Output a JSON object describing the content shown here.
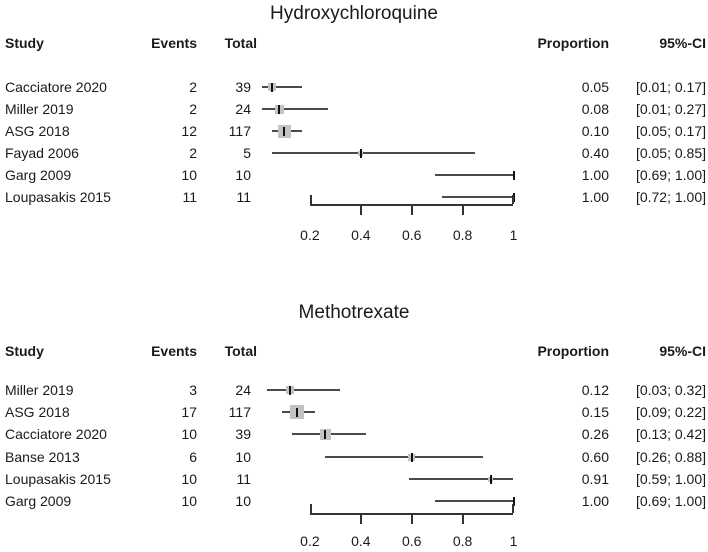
{
  "figure": {
    "background": "#ffffff",
    "colors": {
      "square_fill": "#c3c3c3",
      "ci_line": "#4a4a4a",
      "estimate_tick": "#111111",
      "axis": "#333333",
      "text": "#1a1a1a"
    }
  },
  "chart_data": [
    {
      "type": "forest",
      "title": "Hydroxychloroquine",
      "columns": {
        "study": "Study",
        "events": "Events",
        "total": "Total",
        "proportion": "Proportion",
        "ci": "95%-CI"
      },
      "xlim": [
        0,
        1
      ],
      "x_ticks": [
        0.2,
        0.4,
        0.6,
        0.8,
        1
      ],
      "x_tick_labels": [
        "0.2",
        "0.4",
        "0.6",
        "0.8",
        "1"
      ],
      "grid": false,
      "studies": [
        {
          "study": "Cacciatore 2020",
          "events": "2",
          "total": "39",
          "proportion": 0.05,
          "ci_low": 0.01,
          "ci_high": 0.17,
          "proportion_label": "0.05",
          "ci_label": "[0.01; 0.17]",
          "marker_size": 8
        },
        {
          "study": "Miller 2019",
          "events": "2",
          "total": "24",
          "proportion": 0.08,
          "ci_low": 0.01,
          "ci_high": 0.27,
          "proportion_label": "0.08",
          "ci_label": "[0.01; 0.27]",
          "marker_size": 9
        },
        {
          "study": "ASG 2018",
          "events": "12",
          "total": "117",
          "proportion": 0.1,
          "ci_low": 0.05,
          "ci_high": 0.17,
          "proportion_label": "0.10",
          "ci_label": "[0.05; 0.17]",
          "marker_size": 13
        },
        {
          "study": "Fayad 2006",
          "events": "2",
          "total": "5",
          "proportion": 0.4,
          "ci_low": 0.05,
          "ci_high": 0.85,
          "proportion_label": "0.40",
          "ci_label": "[0.05; 0.85]",
          "marker_size": 5
        },
        {
          "study": "Garg 2009",
          "events": "10",
          "total": "10",
          "proportion": 1.0,
          "ci_low": 0.69,
          "ci_high": 1.0,
          "proportion_label": "1.00",
          "ci_label": "[0.69; 1.00]",
          "marker_size": 0
        },
        {
          "study": "Loupasakis 2015",
          "events": "11",
          "total": "11",
          "proportion": 1.0,
          "ci_low": 0.72,
          "ci_high": 1.0,
          "proportion_label": "1.00",
          "ci_label": "[0.72; 1.00]",
          "marker_size": 0
        }
      ]
    },
    {
      "type": "forest",
      "title": "Methotrexate",
      "columns": {
        "study": "Study",
        "events": "Events",
        "total": "Total",
        "proportion": "Proportion",
        "ci": "95%-CI"
      },
      "xlim": [
        0,
        1
      ],
      "x_ticks": [
        0.2,
        0.4,
        0.6,
        0.8,
        1
      ],
      "x_tick_labels": [
        "0.2",
        "0.4",
        "0.6",
        "0.8",
        "1"
      ],
      "grid": false,
      "studies": [
        {
          "study": "Miller 2019",
          "events": "3",
          "total": "24",
          "proportion": 0.12,
          "ci_low": 0.03,
          "ci_high": 0.32,
          "proportion_label": "0.12",
          "ci_label": "[0.03; 0.32]",
          "marker_size": 8
        },
        {
          "study": "ASG 2018",
          "events": "17",
          "total": "117",
          "proportion": 0.15,
          "ci_low": 0.09,
          "ci_high": 0.22,
          "proportion_label": "0.15",
          "ci_label": "[0.09; 0.22]",
          "marker_size": 14
        },
        {
          "study": "Cacciatore 2020",
          "events": "10",
          "total": "39",
          "proportion": 0.26,
          "ci_low": 0.13,
          "ci_high": 0.42,
          "proportion_label": "0.26",
          "ci_label": "[0.13; 0.42]",
          "marker_size": 11
        },
        {
          "study": "Banse 2013",
          "events": "6",
          "total": "10",
          "proportion": 0.6,
          "ci_low": 0.26,
          "ci_high": 0.88,
          "proportion_label": "0.60",
          "ci_label": "[0.26; 0.88]",
          "marker_size": 7
        },
        {
          "study": "Loupasakis 2015",
          "events": "10",
          "total": "11",
          "proportion": 0.91,
          "ci_low": 0.59,
          "ci_high": 1.0,
          "proportion_label": "0.91",
          "ci_label": "[0.59; 1.00]",
          "marker_size": 5
        },
        {
          "study": "Garg 2009",
          "events": "10",
          "total": "10",
          "proportion": 1.0,
          "ci_low": 0.69,
          "ci_high": 1.0,
          "proportion_label": "1.00",
          "ci_label": "[0.69; 1.00]",
          "marker_size": 0
        }
      ]
    }
  ]
}
